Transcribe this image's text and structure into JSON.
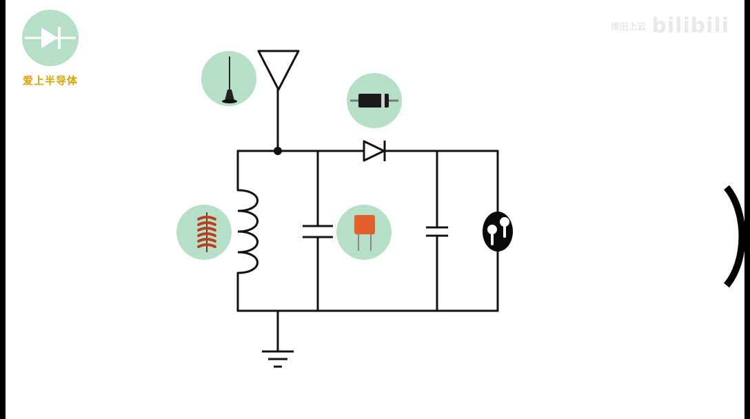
{
  "channel": {
    "name": "爱上半导体",
    "logo_icon": "diode-icon",
    "logo_bg": "#b5dfc6",
    "name_color": "#e0a200"
  },
  "watermark": {
    "author": "博田上云",
    "site": "bilibili"
  },
  "diagram": {
    "type": "crystal-radio-circuit",
    "components": [
      {
        "id": "antenna",
        "icon": "antenna-photo-icon"
      },
      {
        "id": "inductor",
        "icon": "coil-photo-icon"
      },
      {
        "id": "tuning-capacitor",
        "icon": "capacitor-photo-icon"
      },
      {
        "id": "diode",
        "icon": "diode-photo-icon"
      },
      {
        "id": "filter-capacitor"
      },
      {
        "id": "earphone",
        "icon": "earphones-icon"
      },
      {
        "id": "ground"
      }
    ],
    "colors": {
      "wire": "#111111",
      "bubble": "#b5dfc6",
      "capacitor_body": "#e2602a",
      "coil": "#b8401e"
    }
  }
}
